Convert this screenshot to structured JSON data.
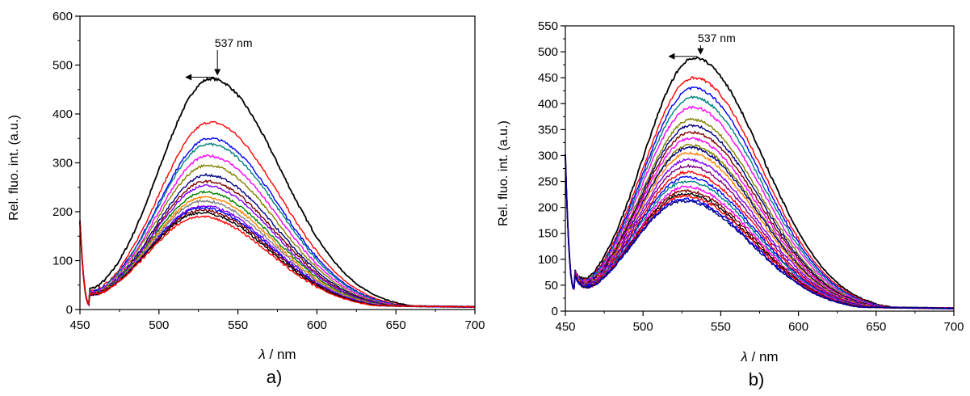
{
  "chart_data": [
    {
      "type": "line",
      "panel_label": "a)",
      "xlabel_symbol": "λ",
      "xlabel_unit": " / nm",
      "ylabel": "Rel. fluo. int. (a.u.)",
      "xlim": [
        450,
        700
      ],
      "ylim": [
        0,
        600
      ],
      "xticks": [
        450,
        500,
        550,
        600,
        650,
        700
      ],
      "yticks": [
        0,
        100,
        200,
        300,
        400,
        500,
        600
      ],
      "annotation": {
        "text": "537 nm",
        "x": 537
      },
      "series": [
        {
          "color": "#000000",
          "peak": 472
        },
        {
          "color": "#ff0000",
          "peak": 383
        },
        {
          "color": "#0000ff",
          "peak": 350
        },
        {
          "color": "#008080",
          "peak": 338
        },
        {
          "color": "#ff00ff",
          "peak": 314
        },
        {
          "color": "#808000",
          "peak": 295
        },
        {
          "color": "#000080",
          "peak": 275
        },
        {
          "color": "#800000",
          "peak": 262
        },
        {
          "color": "#8000ff",
          "peak": 253
        },
        {
          "color": "#008000",
          "peak": 240
        },
        {
          "color": "#ff8000",
          "peak": 230
        },
        {
          "color": "#808080",
          "peak": 222
        },
        {
          "color": "#8000ff",
          "peak": 212
        },
        {
          "color": "#0000ff",
          "peak": 208
        },
        {
          "color": "#800000",
          "peak": 203
        },
        {
          "color": "#000000",
          "peak": 198
        },
        {
          "color": "#ff0000",
          "peak": 190
        }
      ]
    },
    {
      "type": "line",
      "panel_label": "b)",
      "xlabel_symbol": "λ",
      "xlabel_unit": " / nm",
      "ylabel": "Rel. fluo. int. (a.u.)",
      "xlim": [
        450,
        700
      ],
      "ylim": [
        0,
        550
      ],
      "xticks": [
        450,
        500,
        550,
        600,
        650,
        700
      ],
      "yticks": [
        0,
        50,
        100,
        150,
        200,
        250,
        300,
        350,
        400,
        450,
        500,
        550
      ],
      "annotation": {
        "text": "537 nm",
        "x": 537
      },
      "series": [
        {
          "color": "#000000",
          "peak": 488
        },
        {
          "color": "#ff0000",
          "peak": 450
        },
        {
          "color": "#0000ff",
          "peak": 430
        },
        {
          "color": "#008080",
          "peak": 412
        },
        {
          "color": "#ff00ff",
          "peak": 393
        },
        {
          "color": "#808000",
          "peak": 370
        },
        {
          "color": "#000080",
          "peak": 358
        },
        {
          "color": "#800000",
          "peak": 345
        },
        {
          "color": "#ff00ff",
          "peak": 333
        },
        {
          "color": "#808000",
          "peak": 320
        },
        {
          "color": "#000080",
          "peak": 315
        },
        {
          "color": "#ff8000",
          "peak": 305
        },
        {
          "color": "#8000ff",
          "peak": 292
        },
        {
          "color": "#800080",
          "peak": 280
        },
        {
          "color": "#ff0000",
          "peak": 268
        },
        {
          "color": "#0000ff",
          "peak": 258
        },
        {
          "color": "#008080",
          "peak": 250
        },
        {
          "color": "#ff00ff",
          "peak": 240
        },
        {
          "color": "#800000",
          "peak": 232
        },
        {
          "color": "#000000",
          "peak": 226
        },
        {
          "color": "#ff0000",
          "peak": 222
        },
        {
          "color": "#0000ff",
          "peak": 216
        },
        {
          "color": "#000080",
          "peak": 212
        }
      ]
    }
  ]
}
